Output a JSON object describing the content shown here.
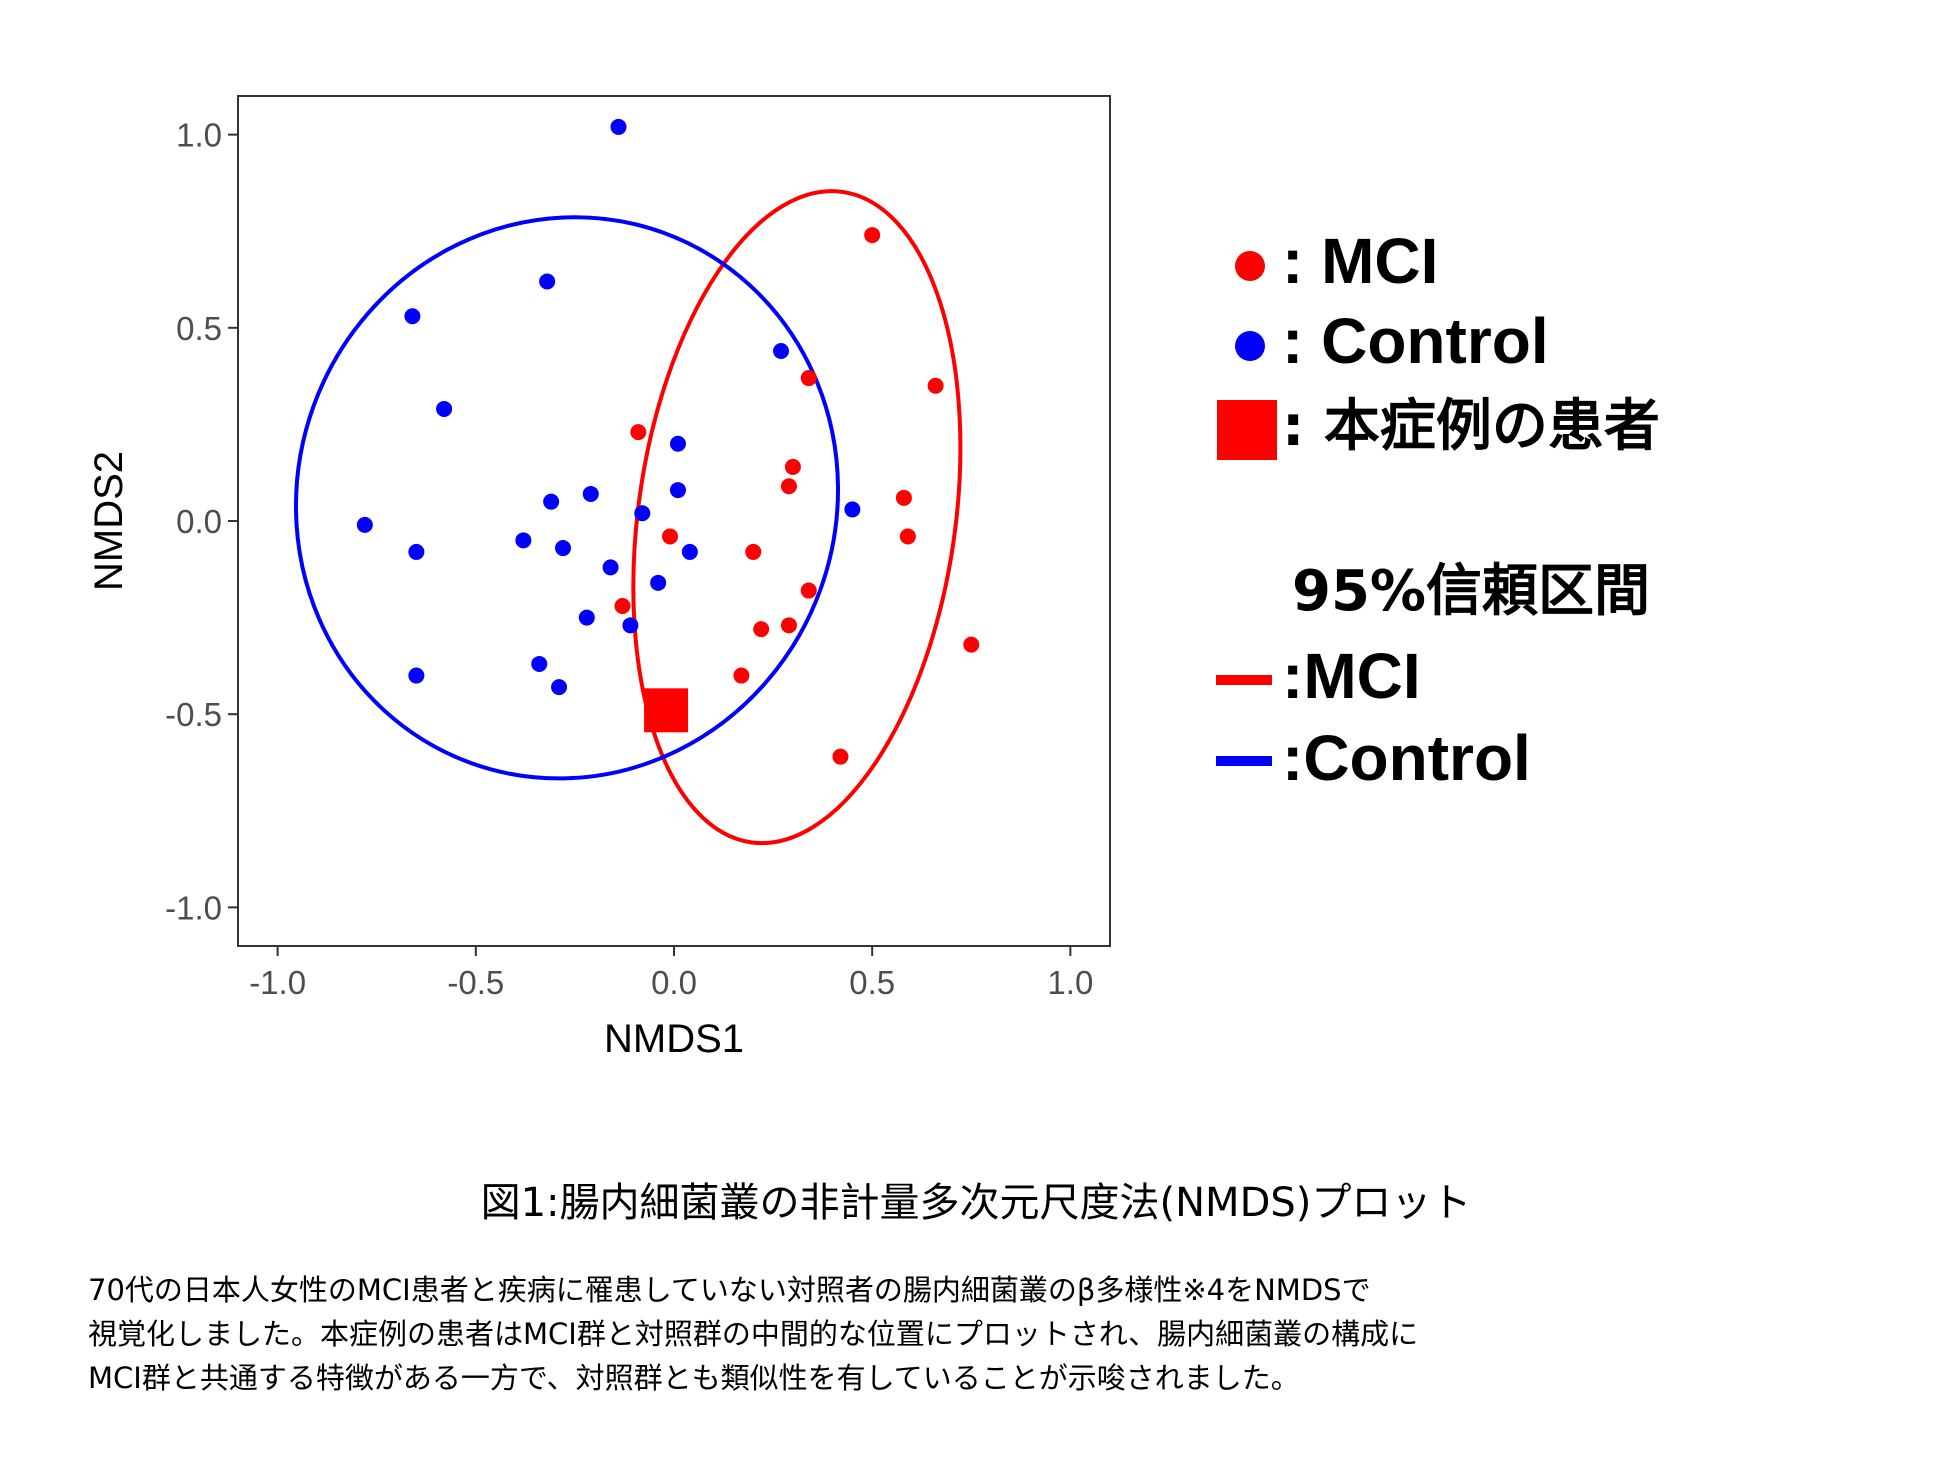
{
  "chart_data": {
    "type": "scatter",
    "xlabel": "NMDS1",
    "ylabel": "NMDS2",
    "xlim": [
      -1.1,
      1.1
    ],
    "ylim": [
      -1.1,
      1.1
    ],
    "x_ticks": [
      -1.0,
      -0.5,
      0.0,
      0.5,
      1.0
    ],
    "x_tick_labels": [
      "-1.0",
      "-0.5",
      "0.0",
      "0.5",
      "1.0"
    ],
    "y_ticks": [
      1.0,
      0.5,
      0.0,
      -0.5,
      -1.0
    ],
    "y_tick_labels": [
      "1.0",
      "0.5",
      "0.0",
      "-0.5",
      "-1.0"
    ],
    "grid": false,
    "legend_position": "right",
    "series": [
      {
        "name": "MCI",
        "color": "#ff0000",
        "points": [
          [
            0.5,
            0.74
          ],
          [
            0.34,
            0.37
          ],
          [
            0.66,
            0.35
          ],
          [
            -0.09,
            0.23
          ],
          [
            0.3,
            0.14
          ],
          [
            0.29,
            0.09
          ],
          [
            0.58,
            0.06
          ],
          [
            -0.01,
            -0.04
          ],
          [
            0.59,
            -0.04
          ],
          [
            0.2,
            -0.08
          ],
          [
            0.34,
            -0.18
          ],
          [
            -0.13,
            -0.22
          ],
          [
            0.22,
            -0.28
          ],
          [
            0.29,
            -0.27
          ],
          [
            0.75,
            -0.32
          ],
          [
            0.17,
            -0.4
          ],
          [
            0.42,
            -0.61
          ]
        ]
      },
      {
        "name": "Control",
        "color": "#0000ff",
        "points": [
          [
            -0.14,
            1.02
          ],
          [
            -0.32,
            0.62
          ],
          [
            -0.66,
            0.53
          ],
          [
            0.27,
            0.44
          ],
          [
            -0.58,
            0.29
          ],
          [
            0.01,
            0.2
          ],
          [
            -0.21,
            0.07
          ],
          [
            0.01,
            0.08
          ],
          [
            -0.31,
            0.05
          ],
          [
            -0.08,
            0.02
          ],
          [
            0.45,
            0.03
          ],
          [
            -0.78,
            -0.01
          ],
          [
            -0.38,
            -0.05
          ],
          [
            -0.65,
            -0.08
          ],
          [
            -0.28,
            -0.07
          ],
          [
            0.04,
            -0.08
          ],
          [
            -0.16,
            -0.12
          ],
          [
            -0.04,
            -0.16
          ],
          [
            -0.22,
            -0.25
          ],
          [
            -0.11,
            -0.27
          ],
          [
            -0.34,
            -0.37
          ],
          [
            -0.65,
            -0.4
          ],
          [
            -0.29,
            -0.43
          ]
        ]
      }
    ],
    "highlight": {
      "name": "本症例の患者",
      "x": -0.02,
      "y": -0.49,
      "color": "#ff0000"
    },
    "ellipses": [
      {
        "name": "MCI",
        "color": "#ff0000",
        "center": [
          0.31,
          0.01
        ],
        "semi_x": 0.4,
        "semi_y": 0.85,
        "angle": 8
      },
      {
        "name": "Control",
        "color": "#0000ff",
        "center": [
          -0.27,
          0.06
        ],
        "semi_x": 0.68,
        "semi_y": 0.73,
        "angle": 20
      }
    ]
  },
  "legend": {
    "mci": ": MCI",
    "control": ": Control",
    "patient": ": 本症例の患者",
    "ci_title": "95%信頼区間",
    "ci_mci": ":MCI",
    "ci_control": ":Control"
  },
  "caption": {
    "title": "図1:腸内細菌叢の非計量多次元尺度法(NMDS)プロット",
    "lines": [
      "70代の日本人女性のMCI患者と疾病に罹患していない対照者の腸内細菌叢のβ多様性※4をNMDSで",
      "視覚化しました。本症例の患者はMCI群と対照群の中間的な位置にプロットされ、腸内細菌叢の構成に",
      "MCI群と共通する特徴がある一方で、対照群とも類似性を有していることが示唆されました。"
    ]
  }
}
